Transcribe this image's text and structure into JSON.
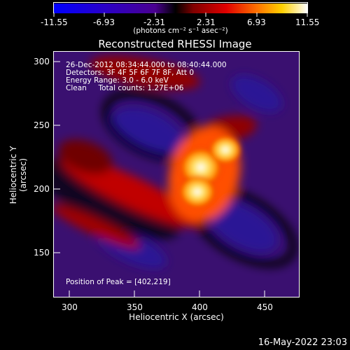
{
  "colorbar": {
    "ticks": [
      "-11.55",
      "-6.93",
      "-2.31",
      "2.31",
      "6.93",
      "11.55"
    ],
    "units_label": "(photons cm⁻² s⁻¹ asec⁻²)"
  },
  "title": "Reconstructed RHESSI Image",
  "overlay": {
    "time_range": "26-Dec-2012 08:34:44.000 to 08:40:44.000",
    "detectors": "Detectors: 3F 4F 5F 6F 7F 8F, Att 0",
    "energy_range": "Energy Range: 3.0 - 6.0 keV",
    "algorithm": "Clean     Total counts: 1.27E+06",
    "peak": "Position of Peak = [402,219]"
  },
  "x_axis": {
    "label": "Heliocentric X (arcsec)",
    "ticks": [
      "300",
      "350",
      "400",
      "450"
    ]
  },
  "y_axis": {
    "label": "Heliocentric Y (arcsec)",
    "ticks": [
      "300",
      "250",
      "200",
      "150"
    ]
  },
  "timestamp": "16-May-2022 23:03"
}
